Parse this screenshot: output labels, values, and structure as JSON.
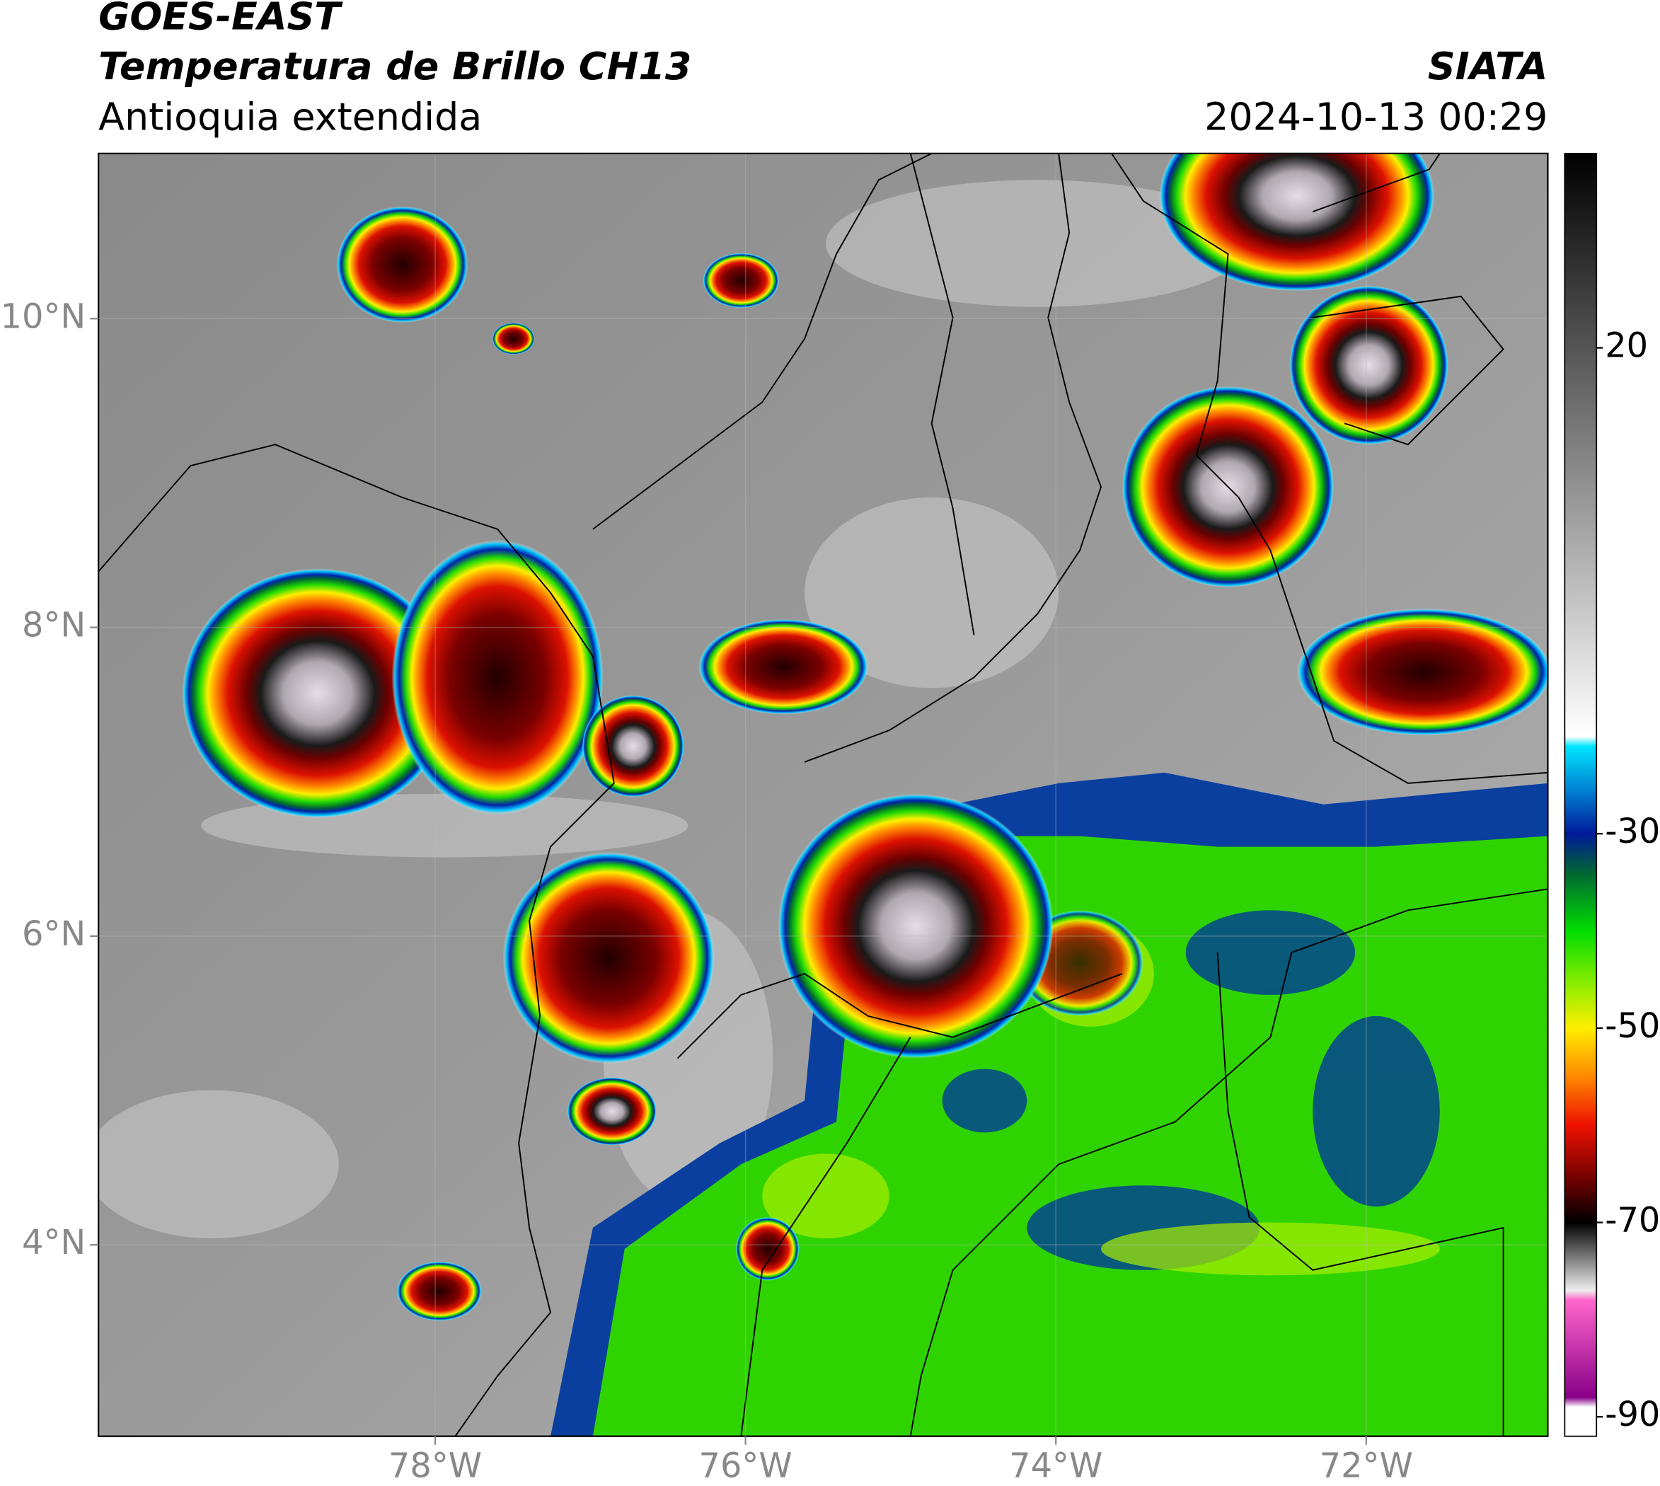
{
  "header": {
    "satellite": "GOES-EAST",
    "product": "Temperatura de Brillo CH13",
    "region": "Antioquia extendida",
    "source": "SIATA",
    "datetime": "2024-10-13 00:29"
  },
  "map": {
    "xlim": [
      -80.17,
      -70.83
    ],
    "ylim": [
      2.76,
      11.07
    ],
    "xticks": [
      {
        "value": -78,
        "label": "78°W"
      },
      {
        "value": -76,
        "label": "76°W"
      },
      {
        "value": -74,
        "label": "74°W"
      },
      {
        "value": -72,
        "label": "72°W"
      }
    ],
    "yticks": [
      {
        "value": 4,
        "label": "4°N"
      },
      {
        "value": 6,
        "label": "6°N"
      },
      {
        "value": 8,
        "label": "8°N"
      },
      {
        "value": 10,
        "label": "10°N"
      }
    ],
    "grid": true
  },
  "colorbar": {
    "lim": [
      -92,
      40
    ],
    "ticks": [
      20,
      -30,
      -50,
      -70,
      -90
    ],
    "stops": [
      {
        "value": 40,
        "color": "#000000"
      },
      {
        "value": -20,
        "color": "#ffffff"
      },
      {
        "value": -21,
        "color": "#00e5ff"
      },
      {
        "value": -26,
        "color": "#0077cc"
      },
      {
        "value": -30,
        "color": "#001a99"
      },
      {
        "value": -34,
        "color": "#006633"
      },
      {
        "value": -40,
        "color": "#00dd00"
      },
      {
        "value": -46,
        "color": "#99ee00"
      },
      {
        "value": -50,
        "color": "#ffee00"
      },
      {
        "value": -55,
        "color": "#ff8800"
      },
      {
        "value": -60,
        "color": "#ee1100"
      },
      {
        "value": -66,
        "color": "#660000"
      },
      {
        "value": -70,
        "color": "#000000"
      },
      {
        "value": -77,
        "color": "#eeeeee"
      },
      {
        "value": -78,
        "color": "#ff66cc"
      },
      {
        "value": -88,
        "color": "#880088"
      },
      {
        "value": -89,
        "color": "#ffffff"
      },
      {
        "value": -92,
        "color": "#ffffff"
      }
    ]
  }
}
